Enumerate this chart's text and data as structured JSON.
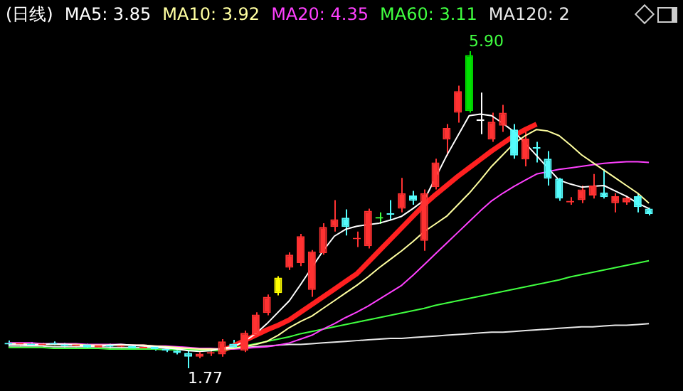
{
  "chart_data": {
    "type": "candlestick",
    "title": "(日线)",
    "legend": "top",
    "categories": [
      null,
      null,
      null,
      null,
      null,
      null,
      null,
      null,
      null,
      null,
      null,
      null,
      null,
      null,
      null,
      null,
      null,
      null,
      null,
      null,
      null,
      null,
      null,
      null,
      null,
      null,
      null,
      null,
      null,
      null,
      null,
      null,
      null,
      null,
      null,
      null,
      null,
      null,
      null,
      null,
      null,
      null,
      null,
      null,
      null,
      null,
      null,
      null,
      null,
      null,
      null,
      null,
      null,
      null,
      null,
      null,
      null,
      null
    ],
    "ohlc": [
      [
        2.1,
        2.13,
        2.06,
        2.08
      ],
      [
        2.08,
        2.1,
        2.05,
        2.09
      ],
      [
        2.09,
        2.11,
        2.06,
        2.07
      ],
      [
        2.07,
        2.1,
        2.05,
        2.09
      ],
      [
        2.09,
        2.12,
        2.07,
        2.08
      ],
      [
        2.08,
        2.1,
        2.04,
        2.06
      ],
      [
        2.06,
        2.09,
        2.04,
        2.08
      ],
      [
        2.08,
        2.09,
        2.03,
        2.04
      ],
      [
        2.04,
        2.08,
        2.02,
        2.07
      ],
      [
        2.07,
        2.09,
        2.03,
        2.05
      ],
      [
        2.05,
        2.08,
        2.03,
        2.06
      ],
      [
        2.06,
        2.07,
        2.02,
        2.03
      ],
      [
        2.03,
        2.06,
        2.01,
        2.05
      ],
      [
        2.05,
        2.06,
        2.0,
        2.02
      ],
      [
        2.02,
        2.04,
        1.98,
        2.0
      ],
      [
        2.0,
        2.03,
        1.95,
        1.97
      ],
      [
        1.97,
        2.0,
        1.77,
        1.92
      ],
      [
        1.92,
        1.98,
        1.9,
        1.96
      ],
      [
        1.96,
        2.0,
        1.93,
        1.98
      ],
      [
        1.95,
        2.15,
        1.92,
        2.12
      ],
      [
        2.09,
        2.14,
        2.03,
        2.04
      ],
      [
        2.0,
        2.26,
        1.98,
        2.23
      ],
      [
        2.2,
        2.5,
        2.18,
        2.47
      ],
      [
        2.49,
        2.73,
        2.46,
        2.7
      ],
      [
        2.75,
        2.97,
        2.72,
        2.95
      ],
      [
        3.08,
        3.28,
        3.05,
        3.25
      ],
      [
        3.14,
        3.52,
        3.1,
        3.49
      ],
      [
        2.79,
        3.31,
        2.7,
        3.29
      ],
      [
        3.27,
        3.66,
        3.25,
        3.61
      ],
      [
        3.61,
        3.96,
        3.55,
        3.71
      ],
      [
        3.73,
        3.84,
        3.5,
        3.61
      ],
      [
        3.45,
        3.55,
        3.35,
        3.47
      ],
      [
        3.36,
        3.85,
        3.33,
        3.82
      ],
      [
        3.74,
        3.8,
        3.65,
        3.72
      ],
      [
        3.78,
        3.96,
        3.7,
        3.77
      ],
      [
        3.85,
        4.25,
        3.8,
        4.05
      ],
      [
        4.02,
        4.08,
        3.9,
        3.95
      ],
      [
        3.43,
        4.1,
        3.3,
        4.05
      ],
      [
        4.13,
        4.5,
        4.1,
        4.45
      ],
      [
        4.75,
        4.95,
        4.54,
        4.9
      ],
      [
        5.1,
        5.45,
        4.97,
        5.38
      ],
      [
        5.85,
        5.9,
        5.1,
        5.12
      ],
      [
        4.99,
        5.36,
        4.82,
        5.01
      ],
      [
        4.75,
        5.1,
        4.72,
        4.98
      ],
      [
        4.93,
        5.2,
        4.85,
        5.1
      ],
      [
        4.88,
        4.95,
        4.5,
        4.54
      ],
      [
        4.49,
        4.89,
        4.4,
        4.76
      ],
      [
        4.65,
        4.72,
        4.45,
        4.63
      ],
      [
        4.5,
        4.6,
        4.15,
        4.24
      ],
      [
        4.24,
        4.25,
        3.95,
        3.98
      ],
      [
        3.93,
        4.0,
        3.9,
        3.95
      ],
      [
        3.96,
        4.15,
        3.92,
        4.1
      ],
      [
        4.02,
        4.3,
        3.98,
        4.15
      ],
      [
        4.06,
        4.36,
        3.98,
        4.0
      ],
      [
        3.92,
        4.05,
        3.8,
        4.01
      ],
      [
        3.93,
        4.01,
        3.9,
        3.99
      ],
      [
        4.01,
        4.05,
        3.8,
        3.87
      ],
      [
        3.85,
        3.86,
        3.76,
        3.78
      ]
    ],
    "colors": [
      "#54fcfc",
      "#ff3232",
      "#54fcfc",
      "#ff3232",
      "#54fcfc",
      "#54fcfc",
      "#ff3232",
      "#54fcfc",
      "#ff3232",
      "#54fcfc",
      "#ff3232",
      "#54fcfc",
      "#ff3232",
      "#54fcfc",
      "#54fcfc",
      "#54fcfc",
      "#54fcfc",
      "#ff3232",
      "#ff3232",
      "#ff3232",
      "#54fcfc",
      "#ff3232",
      "#ff3232",
      "#ff3232",
      "#ffff00",
      "#ff3232",
      "#ff3232",
      "#ff3232",
      "#ff3232",
      "#ff3232",
      "#54fcfc",
      "#ff3232",
      "#ff3232",
      "#40ff40",
      "#54fcfc",
      "#ff3232",
      "#54fcfc",
      "#ff3232",
      "#ff3232",
      "#ff3232",
      "#ff3232",
      "#00e000",
      "#ffffff",
      "#ff3232",
      "#ff3232",
      "#54fcfc",
      "#ff3232",
      "#54fcfc",
      "#54fcfc",
      "#54fcfc",
      "#ff3232",
      "#ff3232",
      "#ff3232",
      "#54fcfc",
      "#ff3232",
      "#ff3232",
      "#54fcfc",
      "#54fcfc"
    ],
    "series": [
      {
        "type": "line",
        "name": "MA5: 3.85",
        "color": "#ffffff",
        "values": [
          2.08,
          2.08,
          2.07,
          2.08,
          2.09,
          2.08,
          2.07,
          2.06,
          2.06,
          2.07,
          2.08,
          2.07,
          2.06,
          2.05,
          2.04,
          2.02,
          2.0,
          1.99,
          2.0,
          2.03,
          2.05,
          2.12,
          2.22,
          2.35,
          2.5,
          2.65,
          2.86,
          3.08,
          3.3,
          3.49,
          3.58,
          3.62,
          3.64,
          3.66,
          3.7,
          3.75,
          3.85,
          3.96,
          4.25,
          4.54,
          4.8,
          5.06,
          5.08,
          5.06,
          4.96,
          4.85,
          4.7,
          4.54,
          4.38,
          4.22,
          4.17,
          4.13,
          4.14,
          4.15,
          4.08,
          4.01,
          3.92,
          3.85
        ]
      },
      {
        "type": "line",
        "name": "MA10: 3.92",
        "color": "#ffffa0",
        "values": [
          2.09,
          2.09,
          2.08,
          2.08,
          2.08,
          2.08,
          2.08,
          2.07,
          2.07,
          2.07,
          2.07,
          2.07,
          2.07,
          2.06,
          2.05,
          2.04,
          2.03,
          2.02,
          2.02,
          2.02,
          2.03,
          2.05,
          2.08,
          2.12,
          2.2,
          2.3,
          2.38,
          2.45,
          2.55,
          2.65,
          2.75,
          2.85,
          2.96,
          3.08,
          3.19,
          3.3,
          3.42,
          3.55,
          3.65,
          3.75,
          3.9,
          4.05,
          4.22,
          4.4,
          4.55,
          4.7,
          4.8,
          4.88,
          4.86,
          4.8,
          4.68,
          4.55,
          4.45,
          4.35,
          4.25,
          4.15,
          4.05,
          3.92
        ]
      },
      {
        "type": "line",
        "name": "MA20: 4.35",
        "color": "#ff40ff",
        "values": [
          2.1,
          2.1,
          2.1,
          2.09,
          2.09,
          2.09,
          2.09,
          2.08,
          2.08,
          2.08,
          2.08,
          2.07,
          2.07,
          2.06,
          2.06,
          2.05,
          2.04,
          2.03,
          2.03,
          2.02,
          2.02,
          2.03,
          2.04,
          2.05,
          2.07,
          2.1,
          2.15,
          2.2,
          2.28,
          2.35,
          2.43,
          2.5,
          2.58,
          2.67,
          2.76,
          2.85,
          2.98,
          3.12,
          3.26,
          3.4,
          3.54,
          3.68,
          3.82,
          3.95,
          4.05,
          4.14,
          4.22,
          4.3,
          4.33,
          4.36,
          4.38,
          4.4,
          4.42,
          4.44,
          4.45,
          4.46,
          4.46,
          4.45
        ]
      },
      {
        "type": "line",
        "name": "MA60: 3.11",
        "color": "#40ff40",
        "values": [
          2.04,
          2.04,
          2.04,
          2.04,
          2.03,
          2.03,
          2.03,
          2.03,
          2.03,
          2.02,
          2.02,
          2.02,
          2.02,
          2.02,
          2.01,
          2.01,
          2.01,
          2.01,
          2.0,
          2.0,
          2.03,
          2.06,
          2.09,
          2.12,
          2.15,
          2.18,
          2.22,
          2.25,
          2.28,
          2.31,
          2.34,
          2.37,
          2.4,
          2.43,
          2.46,
          2.49,
          2.52,
          2.55,
          2.59,
          2.62,
          2.65,
          2.68,
          2.71,
          2.74,
          2.77,
          2.8,
          2.83,
          2.86,
          2.89,
          2.92,
          2.96,
          2.99,
          3.02,
          3.05,
          3.08,
          3.11,
          3.14,
          3.17
        ]
      },
      {
        "type": "line",
        "name": "MA120: 2",
        "color": "#e8e8e8",
        "values": [
          2.06,
          2.06,
          2.06,
          2.06,
          2.05,
          2.05,
          2.05,
          2.05,
          2.05,
          2.04,
          2.04,
          2.04,
          2.04,
          2.04,
          2.03,
          2.03,
          2.03,
          2.03,
          2.02,
          2.02,
          2.03,
          2.04,
          2.05,
          2.06,
          2.07,
          2.08,
          2.08,
          2.09,
          2.1,
          2.11,
          2.12,
          2.13,
          2.14,
          2.15,
          2.16,
          2.16,
          2.17,
          2.18,
          2.19,
          2.2,
          2.21,
          2.22,
          2.23,
          2.24,
          2.24,
          2.25,
          2.26,
          2.27,
          2.28,
          2.29,
          2.3,
          2.31,
          2.31,
          2.32,
          2.33,
          2.33,
          2.34,
          2.35
        ]
      },
      {
        "type": "line",
        "color": "#ff2020",
        "values": [
          null,
          null,
          null,
          null,
          null,
          null,
          null,
          null,
          null,
          null,
          null,
          null,
          null,
          null,
          null,
          null,
          null,
          null,
          null,
          2.0,
          2.06,
          2.13,
          2.2,
          2.27,
          2.33,
          2.4,
          2.5,
          2.6,
          2.7,
          2.8,
          2.9,
          3.0,
          3.15,
          3.3,
          3.45,
          3.6,
          3.75,
          3.9,
          4.03,
          4.15,
          4.27,
          4.38,
          4.49,
          4.6,
          4.7,
          4.8,
          4.88,
          4.95,
          null,
          null,
          null,
          null,
          null,
          null,
          null,
          null,
          null,
          null
        ]
      }
    ],
    "annotations": [
      "5.90",
      "1.77"
    ]
  }
}
